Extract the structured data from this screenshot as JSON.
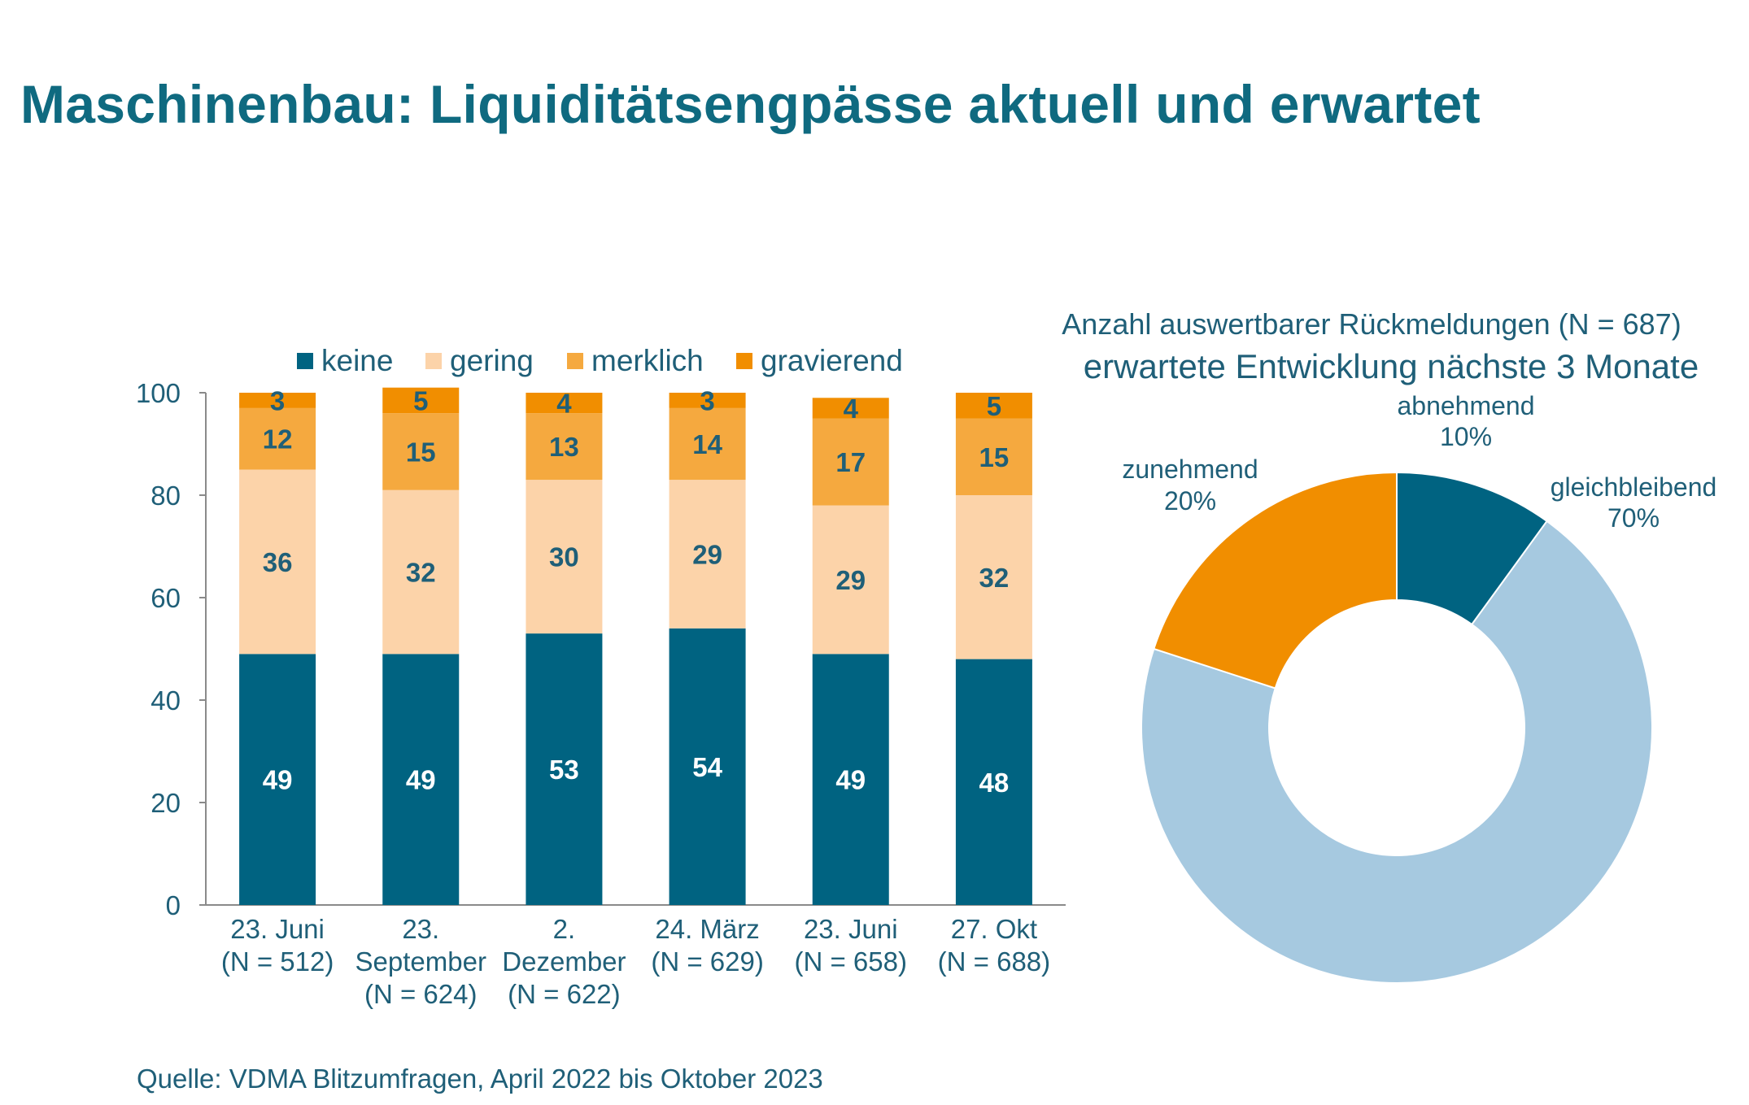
{
  "title": "Maschinenbau: Liquiditätsengpässe aktuell und erwartet",
  "source": "Quelle: VDMA Blitzumfragen, April 2022 bis Oktober 2023",
  "colors": {
    "keine": "#006381",
    "gering": "#fcd3a9",
    "merklich": "#f5a93f",
    "gravierend": "#f18e00",
    "abnehmend": "#006381",
    "gleichbleibend": "#a6c9e0",
    "zunehmend": "#f18e00",
    "text": "#1f5f78"
  },
  "chart_data": [
    {
      "type": "bar",
      "stacked": true,
      "categories": [
        [
          "23. Juni",
          "(N = 512)"
        ],
        [
          "23.",
          "September",
          "(N = 624)"
        ],
        [
          "2.",
          "Dezember",
          "(N = 622)"
        ],
        [
          "24. März",
          "(N = 629)"
        ],
        [
          "23. Juni",
          "(N = 658)"
        ],
        [
          "27. Okt",
          "(N = 688)"
        ]
      ],
      "series": [
        {
          "name": "keine",
          "values": [
            49,
            49,
            53,
            54,
            49,
            48
          ]
        },
        {
          "name": "gering",
          "values": [
            36,
            32,
            30,
            29,
            29,
            32
          ]
        },
        {
          "name": "merklich",
          "values": [
            12,
            15,
            13,
            14,
            17,
            15
          ]
        },
        {
          "name": "gravierend",
          "values": [
            3,
            5,
            4,
            3,
            4,
            5
          ]
        }
      ],
      "ylim": [
        0,
        100
      ],
      "yticks": [
        0,
        20,
        40,
        60,
        80,
        100
      ],
      "legend": "top"
    },
    {
      "type": "pie",
      "donut": true,
      "title": "erwartete Entwicklung nächste 3 Monate",
      "subtitle": "Anzahl auswertbarer Rückmeldungen (N = 687)",
      "slices": [
        {
          "label": "abnehmend",
          "value": 10,
          "display": "10%"
        },
        {
          "label": "gleichbleibend",
          "value": 70,
          "display": "70%"
        },
        {
          "label": "zunehmend",
          "value": 20,
          "display": "20%"
        }
      ]
    }
  ]
}
